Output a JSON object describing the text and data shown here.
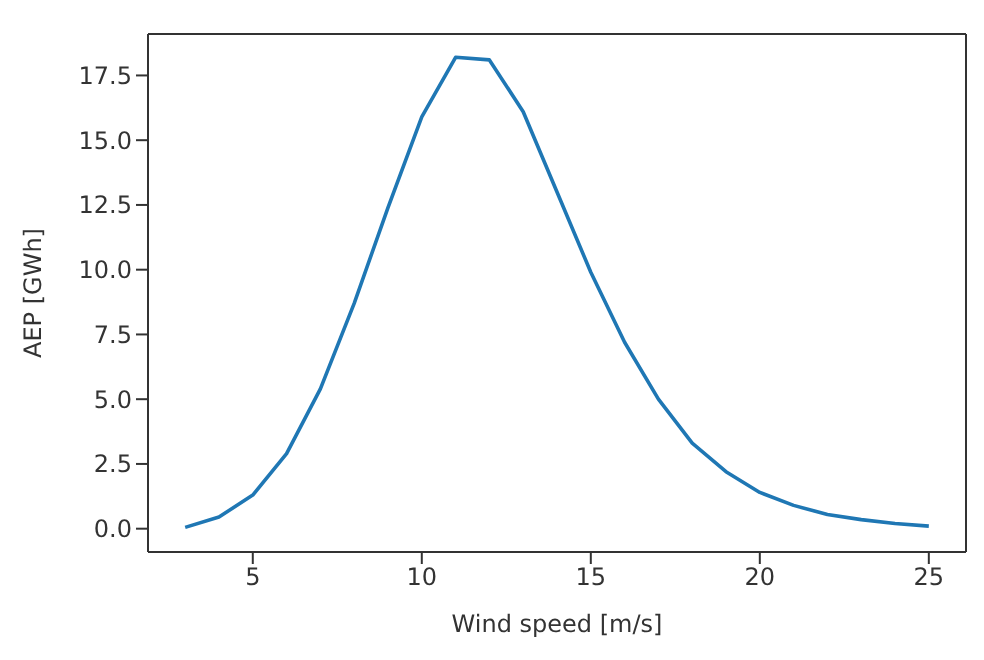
{
  "chart_data": {
    "type": "line",
    "xlabel": "Wind speed [m/s]",
    "ylabel": "AEP [GWh]",
    "x": [
      3,
      4,
      5,
      6,
      7,
      8,
      9,
      10,
      11,
      12,
      13,
      14,
      15,
      16,
      17,
      18,
      19,
      20,
      21,
      22,
      23,
      24,
      25
    ],
    "series": [
      {
        "color": "#1f77b4",
        "values": [
          0.05,
          0.45,
          1.3,
          2.9,
          5.4,
          8.7,
          12.4,
          15.9,
          18.2,
          18.1,
          16.1,
          13.0,
          9.9,
          7.2,
          5.0,
          3.3,
          2.2,
          1.4,
          0.9,
          0.55,
          0.35,
          0.2,
          0.1
        ]
      }
    ],
    "xlim": [
      1.9,
      26.1
    ],
    "xticks": [
      5,
      10,
      15,
      20,
      25
    ],
    "ylim": [
      -0.9,
      19.1
    ],
    "yticks": [
      {
        "value": 0,
        "label": "0.0"
      },
      {
        "value": 2.5,
        "label": "2.5"
      },
      {
        "value": 5,
        "label": "5.0"
      },
      {
        "value": 7.5,
        "label": "7.5"
      },
      {
        "value": 10,
        "label": "10.0"
      },
      {
        "value": 12.5,
        "label": "12.5"
      },
      {
        "value": 15,
        "label": "15.0"
      },
      {
        "value": 17.5,
        "label": "17.5"
      }
    ],
    "legend": false,
    "marker": "none",
    "line_style": "solid"
  }
}
